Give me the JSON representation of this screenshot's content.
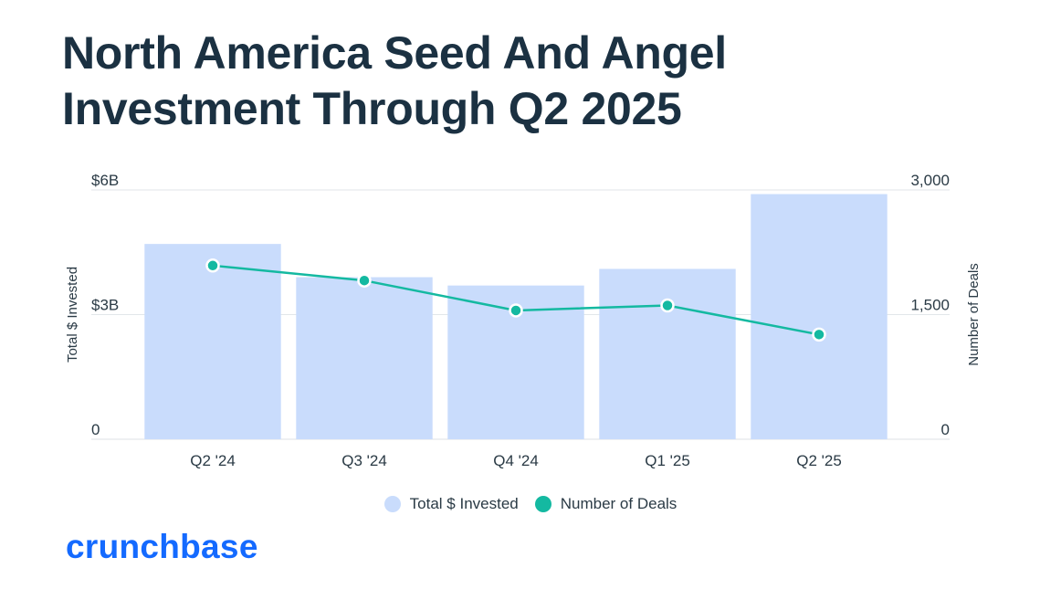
{
  "title_lines": [
    "North America Seed And Angel",
    "Investment Through Q2 2025"
  ],
  "brand": {
    "logo_text": "crunchbase",
    "logo_color": "#146aff"
  },
  "colors": {
    "bar": "#c9dcfc",
    "line": "#14b9a1",
    "grid": "#e2e6ea",
    "axis_text": "#2a3a45"
  },
  "chart_data": {
    "type": "bar",
    "categories": [
      "Q2 '24",
      "Q3 '24",
      "Q4 '24",
      "Q1 '25",
      "Q2 '25"
    ],
    "series": [
      {
        "name": "Total $ Invested",
        "type": "bar",
        "axis": "left",
        "values": [
          4.7,
          3.9,
          3.7,
          4.1,
          5.9
        ]
      },
      {
        "name": "Number of Deals",
        "type": "line",
        "axis": "right",
        "values": [
          2090,
          1910,
          1550,
          1610,
          1260
        ]
      }
    ],
    "y_left": {
      "label": "Total $ Invested",
      "ylim": [
        0,
        6
      ],
      "ticks": [
        0,
        3,
        6
      ],
      "tick_labels": [
        "0",
        "$3B",
        "$6B"
      ]
    },
    "y_right": {
      "label": "Number of Deals",
      "ylim": [
        0,
        3000
      ],
      "ticks": [
        0,
        1500,
        3000
      ],
      "tick_labels": [
        "0",
        "1,500",
        "3,000"
      ]
    },
    "legend_position": "bottom-center",
    "grid": true
  }
}
